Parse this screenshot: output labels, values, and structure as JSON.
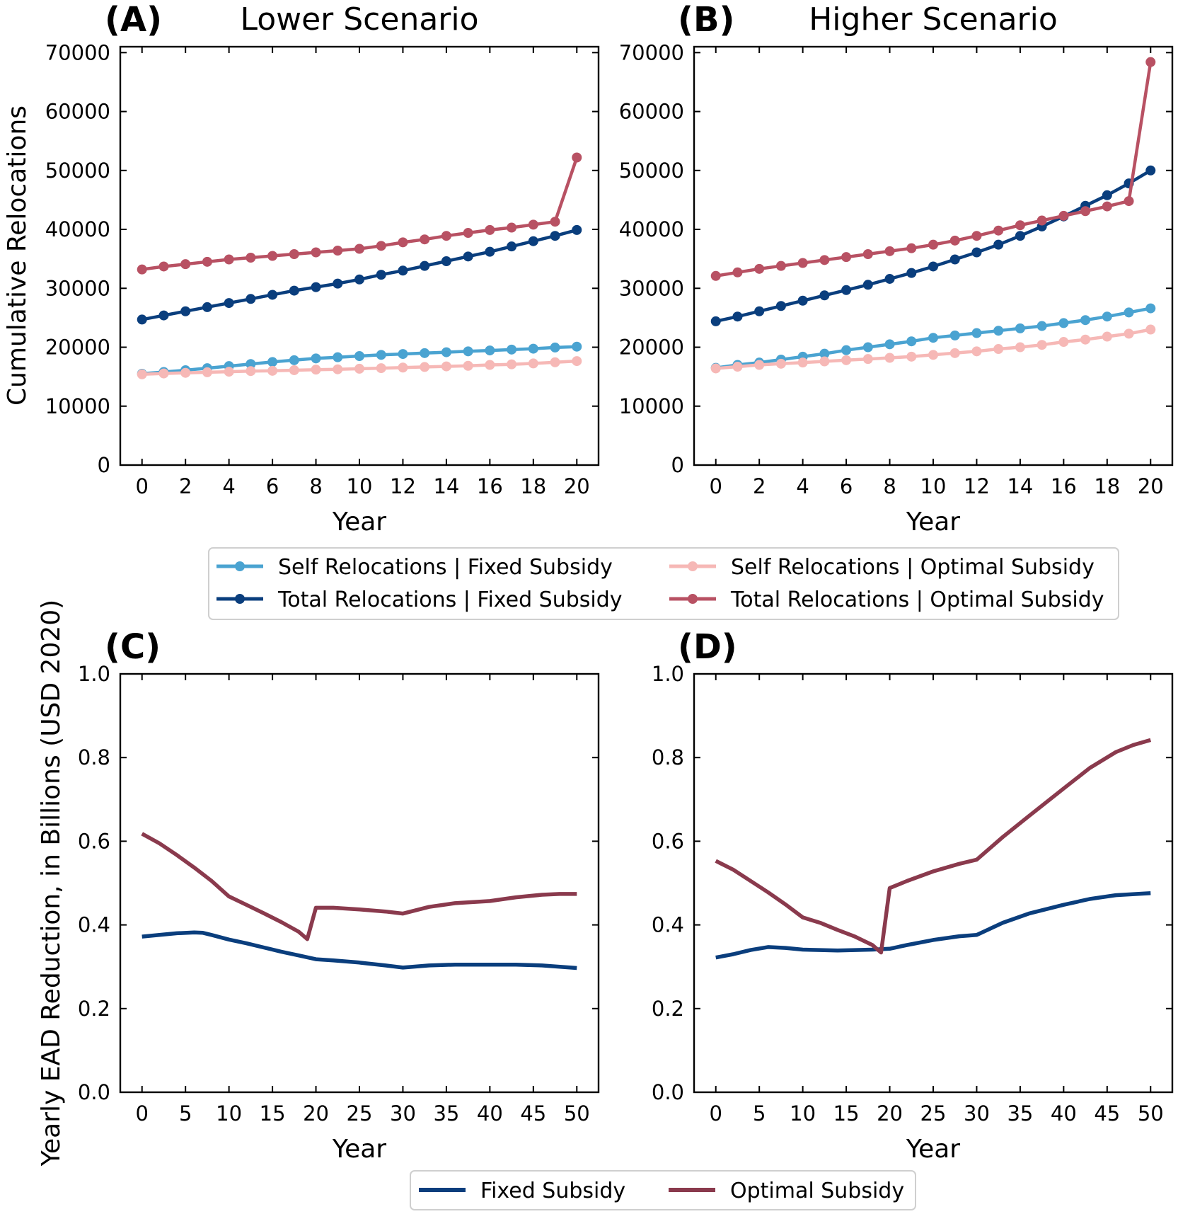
{
  "chart_data": [
    {
      "id": "A",
      "panel_label": "(A)",
      "title": "Lower Scenario",
      "type": "line",
      "xlabel": "Year",
      "ylabel": "Cumulative Relocations",
      "xlim": [
        -1,
        21
      ],
      "ylim": [
        0,
        71000
      ],
      "xticks": [
        0,
        2,
        4,
        6,
        8,
        10,
        12,
        14,
        16,
        18,
        20
      ],
      "yticks": [
        0,
        10000,
        20000,
        30000,
        40000,
        50000,
        60000,
        70000
      ],
      "markers": true,
      "series": [
        {
          "key": "self_fixed",
          "x": [
            0,
            1,
            2,
            3,
            4,
            5,
            6,
            7,
            8,
            9,
            10,
            11,
            12,
            13,
            14,
            15,
            16,
            17,
            18,
            19,
            20
          ],
          "values": [
            15500,
            15800,
            16100,
            16450,
            16800,
            17150,
            17500,
            17800,
            18100,
            18300,
            18500,
            18700,
            18850,
            19000,
            19150,
            19300,
            19450,
            19600,
            19750,
            19950,
            20100
          ]
        },
        {
          "key": "self_optimal",
          "x": [
            0,
            1,
            2,
            3,
            4,
            5,
            6,
            7,
            8,
            9,
            10,
            11,
            12,
            13,
            14,
            15,
            16,
            17,
            18,
            19,
            20
          ],
          "values": [
            15400,
            15550,
            15650,
            15750,
            15850,
            15950,
            16000,
            16100,
            16200,
            16250,
            16350,
            16450,
            16550,
            16650,
            16750,
            16850,
            17000,
            17100,
            17250,
            17450,
            17650
          ]
        },
        {
          "key": "total_fixed",
          "x": [
            0,
            1,
            2,
            3,
            4,
            5,
            6,
            7,
            8,
            9,
            10,
            11,
            12,
            13,
            14,
            15,
            16,
            17,
            18,
            19,
            20
          ],
          "values": [
            24700,
            25400,
            26100,
            26800,
            27500,
            28200,
            28900,
            29600,
            30200,
            30800,
            31500,
            32300,
            33000,
            33800,
            34600,
            35400,
            36200,
            37100,
            38000,
            38900,
            39900
          ]
        },
        {
          "key": "total_optimal",
          "x": [
            0,
            1,
            2,
            3,
            4,
            5,
            6,
            7,
            8,
            9,
            10,
            11,
            12,
            13,
            14,
            15,
            16,
            17,
            18,
            19,
            20
          ],
          "values": [
            33200,
            33700,
            34100,
            34500,
            34900,
            35200,
            35500,
            35800,
            36100,
            36400,
            36700,
            37200,
            37800,
            38300,
            38900,
            39400,
            39900,
            40300,
            40800,
            41300,
            52200
          ]
        }
      ]
    },
    {
      "id": "B",
      "panel_label": "(B)",
      "title": "Higher Scenario",
      "type": "line",
      "xlabel": "Year",
      "ylabel": "",
      "xlim": [
        -1,
        21
      ],
      "ylim": [
        0,
        71000
      ],
      "xticks": [
        0,
        2,
        4,
        6,
        8,
        10,
        12,
        14,
        16,
        18,
        20
      ],
      "yticks": [
        0,
        10000,
        20000,
        30000,
        40000,
        50000,
        60000,
        70000
      ],
      "markers": true,
      "series": [
        {
          "key": "self_fixed",
          "x": [
            0,
            1,
            2,
            3,
            4,
            5,
            6,
            7,
            8,
            9,
            10,
            11,
            12,
            13,
            14,
            15,
            16,
            17,
            18,
            19,
            20
          ],
          "values": [
            16500,
            17000,
            17400,
            17900,
            18400,
            18900,
            19500,
            20000,
            20500,
            21000,
            21600,
            22000,
            22400,
            22800,
            23200,
            23600,
            24100,
            24600,
            25200,
            25900,
            26600
          ]
        },
        {
          "key": "self_optimal",
          "x": [
            0,
            1,
            2,
            3,
            4,
            5,
            6,
            7,
            8,
            9,
            10,
            11,
            12,
            13,
            14,
            15,
            16,
            17,
            18,
            19,
            20
          ],
          "values": [
            16400,
            16700,
            17000,
            17200,
            17400,
            17600,
            17800,
            18000,
            18200,
            18400,
            18700,
            19000,
            19300,
            19700,
            20000,
            20400,
            20900,
            21300,
            21800,
            22300,
            23000
          ]
        },
        {
          "key": "total_fixed",
          "x": [
            0,
            1,
            2,
            3,
            4,
            5,
            6,
            7,
            8,
            9,
            10,
            11,
            12,
            13,
            14,
            15,
            16,
            17,
            18,
            19,
            20
          ],
          "values": [
            24400,
            25200,
            26100,
            27000,
            27900,
            28800,
            29700,
            30600,
            31600,
            32600,
            33700,
            34900,
            36100,
            37400,
            38900,
            40500,
            42200,
            44000,
            45800,
            47800,
            50000
          ]
        },
        {
          "key": "total_optimal",
          "x": [
            0,
            1,
            2,
            3,
            4,
            5,
            6,
            7,
            8,
            9,
            10,
            11,
            12,
            13,
            14,
            15,
            16,
            17,
            18,
            19,
            20
          ],
          "values": [
            32100,
            32700,
            33300,
            33800,
            34300,
            34800,
            35300,
            35800,
            36300,
            36800,
            37400,
            38100,
            38900,
            39800,
            40700,
            41500,
            42300,
            43100,
            43900,
            44800,
            68400
          ]
        }
      ]
    },
    {
      "id": "C",
      "panel_label": "(C)",
      "title": "",
      "type": "line",
      "xlabel": "Year",
      "ylabel": "Yearly EAD Reduction, in Billions (USD 2020)",
      "xlim": [
        -2.5,
        52.5
      ],
      "ylim": [
        0,
        1.0
      ],
      "xticks": [
        0,
        5,
        10,
        15,
        20,
        25,
        30,
        35,
        40,
        45,
        50
      ],
      "yticks": [
        "0.0",
        "0.2",
        "0.4",
        "0.6",
        "0.8",
        "1.0"
      ],
      "markers": false,
      "series": [
        {
          "key": "fixed",
          "x": [
            0,
            2,
            4,
            6,
            7,
            8,
            10,
            12,
            14,
            16,
            18,
            20,
            22,
            25,
            28,
            30,
            33,
            36,
            40,
            43,
            46,
            50
          ],
          "values": [
            0.372,
            0.376,
            0.38,
            0.382,
            0.381,
            0.376,
            0.365,
            0.356,
            0.346,
            0.336,
            0.327,
            0.318,
            0.315,
            0.31,
            0.303,
            0.298,
            0.303,
            0.305,
            0.305,
            0.305,
            0.303,
            0.297
          ]
        },
        {
          "key": "optimal",
          "x": [
            0,
            2,
            4,
            6,
            8,
            10,
            12,
            14,
            16,
            18,
            19,
            20,
            22,
            25,
            28,
            30,
            33,
            36,
            40,
            43,
            46,
            48,
            50
          ],
          "values": [
            0.618,
            0.595,
            0.567,
            0.537,
            0.505,
            0.468,
            0.448,
            0.428,
            0.407,
            0.384,
            0.366,
            0.441,
            0.441,
            0.437,
            0.432,
            0.427,
            0.443,
            0.452,
            0.457,
            0.466,
            0.472,
            0.474,
            0.474
          ]
        }
      ]
    },
    {
      "id": "D",
      "panel_label": "(D)",
      "title": "",
      "type": "line",
      "xlabel": "Year",
      "ylabel": "",
      "xlim": [
        -2.5,
        52.5
      ],
      "ylim": [
        0,
        1.0
      ],
      "xticks": [
        0,
        5,
        10,
        15,
        20,
        25,
        30,
        35,
        40,
        45,
        50
      ],
      "yticks": [
        "0.0",
        "0.2",
        "0.4",
        "0.6",
        "0.8",
        "1.0"
      ],
      "markers": false,
      "series": [
        {
          "key": "fixed",
          "x": [
            0,
            2,
            4,
            6,
            8,
            10,
            12,
            14,
            16,
            18,
            19,
            20,
            22,
            25,
            28,
            30,
            33,
            36,
            40,
            43,
            46,
            50
          ],
          "values": [
            0.322,
            0.33,
            0.34,
            0.347,
            0.345,
            0.341,
            0.34,
            0.339,
            0.34,
            0.341,
            0.342,
            0.343,
            0.352,
            0.364,
            0.373,
            0.376,
            0.405,
            0.427,
            0.448,
            0.462,
            0.471,
            0.476
          ]
        },
        {
          "key": "optimal",
          "x": [
            0,
            2,
            4,
            6,
            8,
            10,
            12,
            14,
            16,
            18,
            19,
            20,
            22,
            25,
            28,
            30,
            33,
            36,
            40,
            43,
            46,
            48,
            50
          ],
          "values": [
            0.553,
            0.532,
            0.505,
            0.478,
            0.449,
            0.418,
            0.405,
            0.388,
            0.372,
            0.352,
            0.334,
            0.488,
            0.505,
            0.528,
            0.546,
            0.556,
            0.61,
            0.66,
            0.726,
            0.775,
            0.813,
            0.83,
            0.842
          ]
        }
      ]
    }
  ],
  "legend_top": {
    "items": [
      {
        "key": "self_fixed",
        "label": "Self Relocations | Fixed Subsidy"
      },
      {
        "key": "total_fixed",
        "label": "Total Relocations | Fixed Subsidy"
      },
      {
        "key": "self_optimal",
        "label": "Self Relocations | Optimal Subsidy"
      },
      {
        "key": "total_optimal",
        "label": "Total Relocations | Optimal Subsidy"
      }
    ]
  },
  "legend_bottom": {
    "items": [
      {
        "key": "fixed",
        "label": "Fixed Subsidy"
      },
      {
        "key": "optimal",
        "label": "Optimal Subsidy"
      }
    ]
  },
  "colors": {
    "self_fixed": "#4aa3d1",
    "total_fixed": "#0a3e7d",
    "self_optimal": "#f6b8b6",
    "total_optimal": "#b85163",
    "fixed": "#0a3e7d",
    "optimal": "#8a3a4d"
  }
}
